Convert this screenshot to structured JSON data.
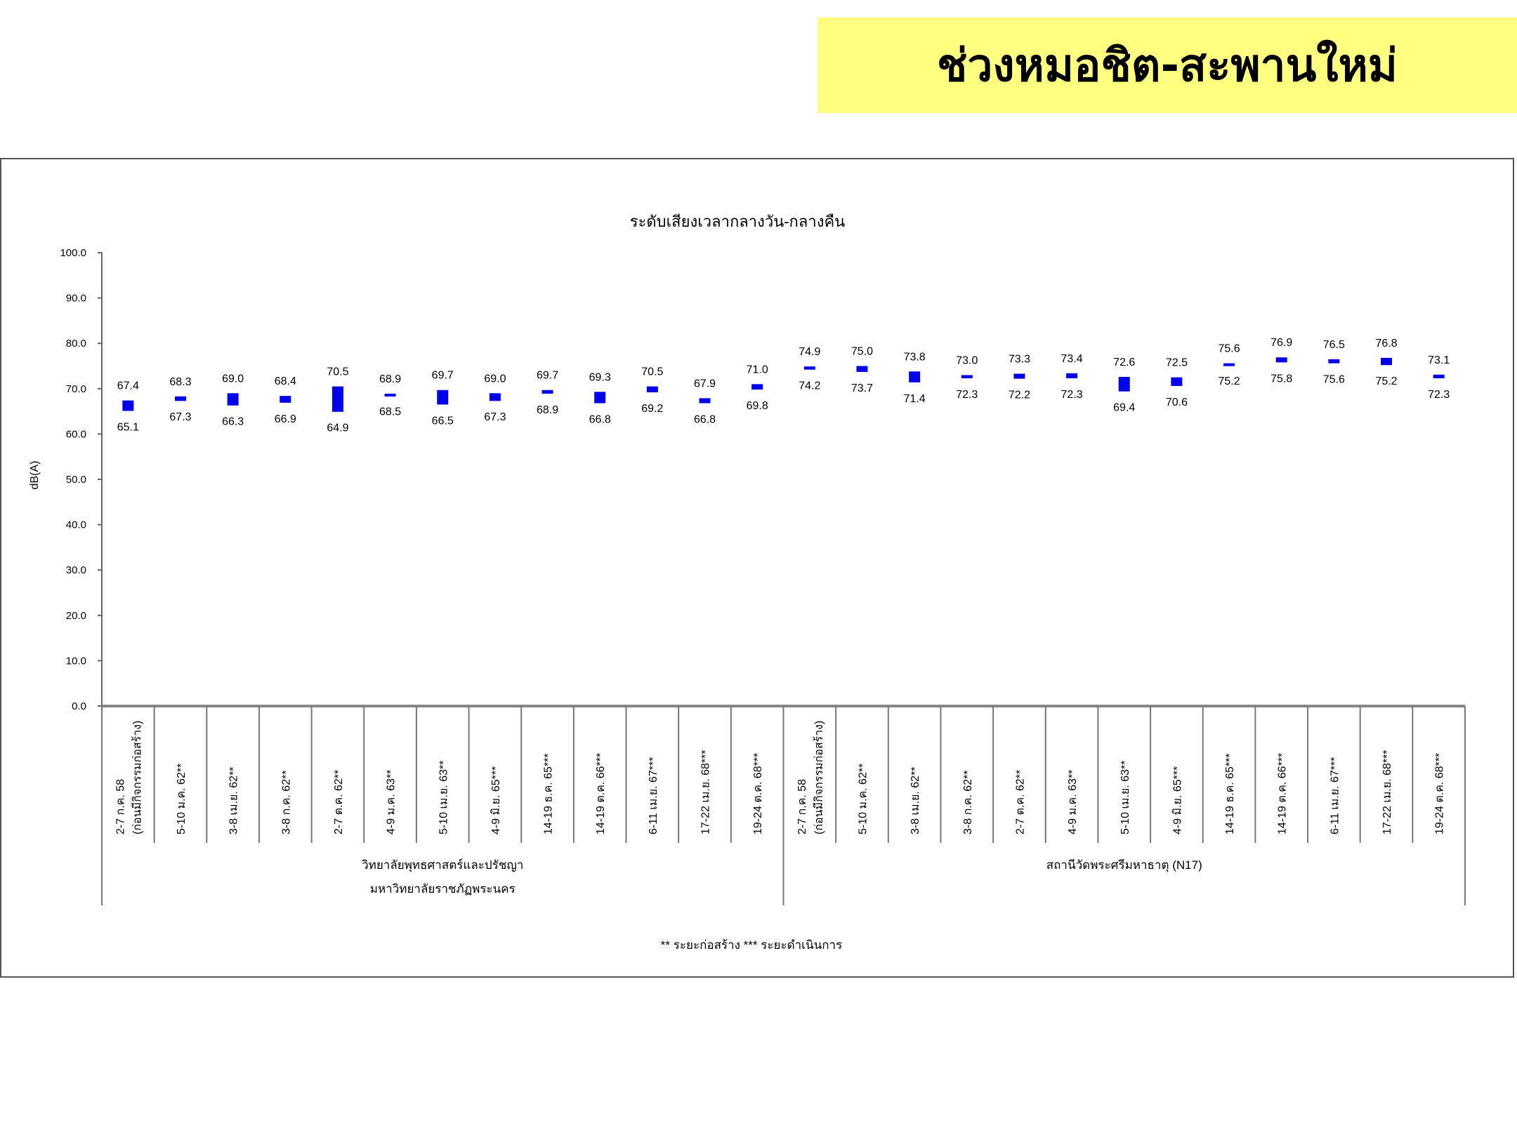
{
  "page_title": "ช่วงหมอชิต-สะพานใหม่",
  "colors": {
    "banner": "#ffff80",
    "bar": "#0000ee"
  },
  "chart_data": {
    "type": "bar",
    "subtype": "floating-range",
    "title": "ระดับเสียงเวลากลางวัน-กลางคืน",
    "ylabel": "dB(A)",
    "xlabel": "",
    "ylim": [
      0,
      100
    ],
    "yticks": [
      "0.0",
      "10.0",
      "20.0",
      "30.0",
      "40.0",
      "50.0",
      "60.0",
      "70.0",
      "80.0",
      "90.0",
      "100.0"
    ],
    "grid": false,
    "groups": [
      {
        "name": "วิทยาลัยพุทธศาสตร์และปรัชญา มหาวิทยาลัยราชภัฏพระนคร",
        "name_lines": [
          "วิทยาลัยพุทธศาสตร์และปรัชญา",
          "มหาวิทยาลัยราชภัฏพระนคร"
        ],
        "categories": [
          "2-7 ก.ค. 58|(ก่อนมีกิจกรรมก่อสร้าง)",
          "5-10 ม.ค. 62**",
          "3-8 เม.ย. 62**",
          "3-8 ก.ค. 62**",
          "2-7 ต.ค. 62**",
          "4-9 ม.ค. 63**",
          "5-10 เม.ย. 63**",
          "4-9 มิ.ย. 65***",
          "14-19 ธ.ค. 65***",
          "14-19 ต.ค. 66***",
          "6-11 เม.ย. 67***",
          "17-22 เม.ย. 68***",
          "19-24 ต.ค. 68***"
        ],
        "high": [
          67.4,
          68.3,
          69.0,
          68.4,
          70.5,
          68.9,
          69.7,
          69.0,
          69.7,
          69.3,
          70.5,
          67.9,
          71.0
        ],
        "low": [
          65.1,
          67.3,
          66.3,
          66.9,
          64.9,
          68.5,
          66.5,
          67.3,
          68.9,
          66.8,
          69.2,
          66.8,
          69.8
        ]
      },
      {
        "name": "สถานีวัดพระศรีมหาธาตุ (N17)",
        "name_lines": [
          "สถานีวัดพระศรีมหาธาตุ (N17)"
        ],
        "categories": [
          "2-7 ก.ค. 58|(ก่อนมีกิจกรรมก่อสร้าง)",
          "5-10 ม.ค. 62**",
          "3-8 เม.ย. 62**",
          "3-8 ก.ค. 62**",
          "2-7 ต.ค. 62**",
          "4-9 ม.ค. 63**",
          "5-10 เม.ย. 63**",
          "4-9 มิ.ย. 65***",
          "14-19 ธ.ค. 65***",
          "14-19 ต.ค. 66***",
          "6-11 เม.ย. 67***",
          "17-22 เม.ย. 68***",
          "19-24 ต.ค. 68***"
        ],
        "high": [
          74.9,
          75.0,
          73.8,
          73.0,
          73.3,
          73.4,
          72.6,
          72.5,
          75.6,
          76.9,
          76.5,
          76.8,
          73.1
        ],
        "low": [
          74.2,
          73.7,
          71.4,
          72.3,
          72.2,
          72.3,
          69.4,
          70.6,
          75.2,
          75.8,
          75.6,
          75.2,
          72.3
        ]
      }
    ],
    "legend_note": "** ระยะก่อสร้าง    *** ระยะดำเนินการ",
    "legend_placement": "bottom"
  }
}
